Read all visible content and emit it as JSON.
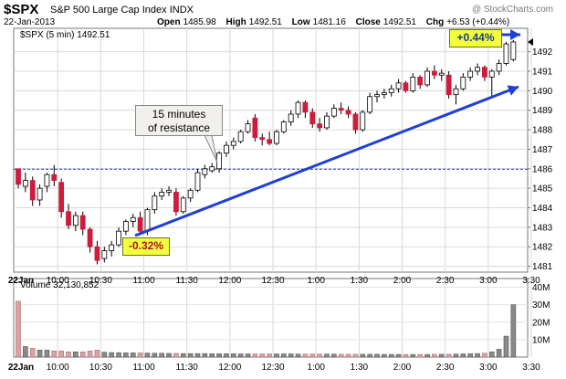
{
  "header": {
    "symbol": "$SPX",
    "name": "S&P 500 Large Cap Index",
    "exchange": "INDX",
    "date": "22-Jan-2013",
    "watermark": "@ StockCharts.com",
    "ohlc": {
      "open_label": "Open",
      "open": "1485.98",
      "high_label": "High",
      "high": "1492.51",
      "low_label": "Low",
      "low": "1481.16",
      "close_label": "Close",
      "close": "1492.51",
      "chg_label": "Chg",
      "chg": "+6.53 (+0.44%)"
    }
  },
  "legend": {
    "price": "$SPX (5 min) 1492.51",
    "volume": "Volume 32,130,852"
  },
  "annotations": {
    "resistance_line1": "15 minutes",
    "resistance_line2": "of resistance",
    "gain": "+0.44%",
    "loss": "-0.32%"
  },
  "colors": {
    "up": "#ffffff",
    "down": "#cc1d3c",
    "trendline": "#1f3fd6",
    "reference_line": "#1f2fa8",
    "volume_up": "#8a8a8a",
    "volume_down": "#d7a3a6"
  },
  "chart_data": {
    "type": "candlestick",
    "interval": "5 min",
    "reference_level": 1485.98,
    "ylim": [
      1480.7,
      1493.2
    ],
    "y_ticks": [
      1481,
      1482,
      1483,
      1484,
      1485,
      1486,
      1487,
      1488,
      1489,
      1490,
      1491,
      1492
    ],
    "x_ticks": [
      "22Jan",
      "10:00",
      "10:30",
      "11:00",
      "11:30",
      "12:00",
      "12:30",
      "1:00",
      "1:30",
      "2:00",
      "2:30",
      "3:00",
      "3:30"
    ],
    "volume_ticks": [
      "10M",
      "20M",
      "30M",
      "40M"
    ],
    "volume_max_millions": 45,
    "bars": [
      {
        "o": 1486.0,
        "h": 1486.0,
        "l": 1485.0,
        "c": 1485.2,
        "v": 32
      },
      {
        "o": 1485.1,
        "h": 1485.8,
        "l": 1484.8,
        "c": 1485.4,
        "v": 6
      },
      {
        "o": 1485.4,
        "h": 1485.6,
        "l": 1484.1,
        "c": 1484.4,
        "v": 5
      },
      {
        "o": 1484.4,
        "h": 1485.2,
        "l": 1484.1,
        "c": 1485.0,
        "v": 4
      },
      {
        "o": 1485.1,
        "h": 1485.8,
        "l": 1484.8,
        "c": 1485.7,
        "v": 4
      },
      {
        "o": 1485.7,
        "h": 1486.2,
        "l": 1485.1,
        "c": 1485.4,
        "v": 3.5
      },
      {
        "o": 1485.3,
        "h": 1485.5,
        "l": 1483.5,
        "c": 1483.8,
        "v": 3.5
      },
      {
        "o": 1483.8,
        "h": 1484.2,
        "l": 1482.9,
        "c": 1483.1,
        "v": 3
      },
      {
        "o": 1483.1,
        "h": 1483.8,
        "l": 1482.8,
        "c": 1483.6,
        "v": 3
      },
      {
        "o": 1483.6,
        "h": 1483.8,
        "l": 1482.6,
        "c": 1482.9,
        "v": 3
      },
      {
        "o": 1482.9,
        "h": 1483.0,
        "l": 1481.7,
        "c": 1482.0,
        "v": 3.5
      },
      {
        "o": 1482.0,
        "h": 1482.3,
        "l": 1481.1,
        "c": 1481.3,
        "v": 4
      },
      {
        "o": 1481.4,
        "h": 1482.0,
        "l": 1481.2,
        "c": 1481.8,
        "v": 2.8
      },
      {
        "o": 1481.8,
        "h": 1482.3,
        "l": 1481.5,
        "c": 1482.1,
        "v": 2.6
      },
      {
        "o": 1482.1,
        "h": 1483.0,
        "l": 1482.0,
        "c": 1482.8,
        "v": 2.5
      },
      {
        "o": 1482.8,
        "h": 1483.4,
        "l": 1482.6,
        "c": 1483.3,
        "v": 2.4
      },
      {
        "o": 1483.3,
        "h": 1483.7,
        "l": 1483.0,
        "c": 1483.5,
        "v": 2.4
      },
      {
        "o": 1483.5,
        "h": 1483.8,
        "l": 1482.6,
        "c": 1482.8,
        "v": 2.4
      },
      {
        "o": 1482.8,
        "h": 1484.0,
        "l": 1482.6,
        "c": 1483.9,
        "v": 2.3
      },
      {
        "o": 1483.9,
        "h": 1484.8,
        "l": 1483.7,
        "c": 1484.6,
        "v": 2.2
      },
      {
        "o": 1484.6,
        "h": 1485.0,
        "l": 1484.4,
        "c": 1484.8,
        "v": 2.2
      },
      {
        "o": 1484.8,
        "h": 1485.1,
        "l": 1484.6,
        "c": 1484.9,
        "v": 2.1
      },
      {
        "o": 1484.8,
        "h": 1485.0,
        "l": 1483.6,
        "c": 1483.8,
        "v": 2.1
      },
      {
        "o": 1483.8,
        "h": 1484.6,
        "l": 1483.7,
        "c": 1484.5,
        "v": 2.0
      },
      {
        "o": 1484.5,
        "h": 1485.0,
        "l": 1484.3,
        "c": 1484.9,
        "v": 2.0
      },
      {
        "o": 1484.9,
        "h": 1486.0,
        "l": 1484.8,
        "c": 1485.8,
        "v": 2.0
      },
      {
        "o": 1485.7,
        "h": 1486.2,
        "l": 1485.5,
        "c": 1486.0,
        "v": 2.0
      },
      {
        "o": 1485.9,
        "h": 1486.3,
        "l": 1485.8,
        "c": 1486.1,
        "v": 1.9
      },
      {
        "o": 1486.0,
        "h": 1486.9,
        "l": 1485.8,
        "c": 1486.8,
        "v": 1.9
      },
      {
        "o": 1486.8,
        "h": 1487.4,
        "l": 1486.6,
        "c": 1487.2,
        "v": 1.9
      },
      {
        "o": 1487.2,
        "h": 1487.6,
        "l": 1487.0,
        "c": 1487.4,
        "v": 1.9
      },
      {
        "o": 1487.4,
        "h": 1488.0,
        "l": 1487.3,
        "c": 1487.9,
        "v": 1.8
      },
      {
        "o": 1487.9,
        "h": 1488.5,
        "l": 1487.8,
        "c": 1488.3,
        "v": 1.8
      },
      {
        "o": 1488.6,
        "h": 1488.8,
        "l": 1487.4,
        "c": 1487.6,
        "v": 1.8
      },
      {
        "o": 1487.6,
        "h": 1487.8,
        "l": 1487.2,
        "c": 1487.5,
        "v": 1.8
      },
      {
        "o": 1487.5,
        "h": 1487.9,
        "l": 1487.2,
        "c": 1487.3,
        "v": 1.8
      },
      {
        "o": 1487.3,
        "h": 1488.0,
        "l": 1487.2,
        "c": 1487.9,
        "v": 1.8
      },
      {
        "o": 1487.9,
        "h": 1488.5,
        "l": 1487.8,
        "c": 1488.4,
        "v": 1.8
      },
      {
        "o": 1488.4,
        "h": 1489.0,
        "l": 1488.2,
        "c": 1488.8,
        "v": 1.8
      },
      {
        "o": 1488.8,
        "h": 1489.5,
        "l": 1488.6,
        "c": 1489.4,
        "v": 1.7
      },
      {
        "o": 1489.4,
        "h": 1489.5,
        "l": 1488.6,
        "c": 1488.9,
        "v": 1.7
      },
      {
        "o": 1488.9,
        "h": 1489.1,
        "l": 1488.1,
        "c": 1488.3,
        "v": 1.7
      },
      {
        "o": 1488.3,
        "h": 1488.6,
        "l": 1487.9,
        "c": 1488.1,
        "v": 1.7
      },
      {
        "o": 1488.1,
        "h": 1488.9,
        "l": 1488.0,
        "c": 1488.7,
        "v": 1.7
      },
      {
        "o": 1488.7,
        "h": 1489.3,
        "l": 1488.6,
        "c": 1489.1,
        "v": 1.7
      },
      {
        "o": 1489.1,
        "h": 1489.4,
        "l": 1488.8,
        "c": 1489.0,
        "v": 1.6
      },
      {
        "o": 1489.0,
        "h": 1489.2,
        "l": 1488.6,
        "c": 1488.8,
        "v": 1.6
      },
      {
        "o": 1488.8,
        "h": 1488.9,
        "l": 1487.8,
        "c": 1488.0,
        "v": 1.6
      },
      {
        "o": 1488.0,
        "h": 1489.0,
        "l": 1487.9,
        "c": 1488.9,
        "v": 1.6
      },
      {
        "o": 1488.9,
        "h": 1489.9,
        "l": 1488.8,
        "c": 1489.7,
        "v": 1.6
      },
      {
        "o": 1489.7,
        "h": 1490.0,
        "l": 1489.4,
        "c": 1489.8,
        "v": 1.6
      },
      {
        "o": 1489.8,
        "h": 1490.1,
        "l": 1489.6,
        "c": 1489.9,
        "v": 1.5
      },
      {
        "o": 1489.9,
        "h": 1490.3,
        "l": 1489.7,
        "c": 1490.1,
        "v": 1.5
      },
      {
        "o": 1490.1,
        "h": 1490.6,
        "l": 1489.9,
        "c": 1490.4,
        "v": 1.5
      },
      {
        "o": 1490.4,
        "h": 1490.5,
        "l": 1489.9,
        "c": 1490.0,
        "v": 1.5
      },
      {
        "o": 1490.0,
        "h": 1490.9,
        "l": 1489.9,
        "c": 1490.7,
        "v": 1.5
      },
      {
        "o": 1490.7,
        "h": 1490.8,
        "l": 1490.1,
        "c": 1490.3,
        "v": 1.5
      },
      {
        "o": 1490.3,
        "h": 1491.2,
        "l": 1490.2,
        "c": 1491.0,
        "v": 1.5
      },
      {
        "o": 1491.0,
        "h": 1491.3,
        "l": 1490.6,
        "c": 1490.8,
        "v": 1.6
      },
      {
        "o": 1490.8,
        "h": 1491.1,
        "l": 1490.5,
        "c": 1490.9,
        "v": 1.6
      },
      {
        "o": 1490.8,
        "h": 1491.0,
        "l": 1489.6,
        "c": 1489.8,
        "v": 1.6
      },
      {
        "o": 1489.8,
        "h": 1490.3,
        "l": 1489.3,
        "c": 1490.1,
        "v": 1.7
      },
      {
        "o": 1490.1,
        "h": 1490.9,
        "l": 1490.0,
        "c": 1490.7,
        "v": 1.8
      },
      {
        "o": 1490.7,
        "h": 1491.2,
        "l": 1490.5,
        "c": 1491.0,
        "v": 1.9
      },
      {
        "o": 1491.0,
        "h": 1491.4,
        "l": 1490.8,
        "c": 1491.2,
        "v": 2.0
      },
      {
        "o": 1491.2,
        "h": 1491.3,
        "l": 1490.5,
        "c": 1490.7,
        "v": 2.2
      },
      {
        "o": 1490.7,
        "h": 1491.1,
        "l": 1489.7,
        "c": 1491.0,
        "v": 3.0
      },
      {
        "o": 1491.0,
        "h": 1491.6,
        "l": 1490.8,
        "c": 1491.4,
        "v": 4.5
      },
      {
        "o": 1491.4,
        "h": 1492.51,
        "l": 1491.3,
        "c": 1492.4,
        "v": 12
      },
      {
        "o": 1491.6,
        "h": 1492.6,
        "l": 1491.5,
        "c": 1492.5,
        "v": 30
      }
    ]
  }
}
